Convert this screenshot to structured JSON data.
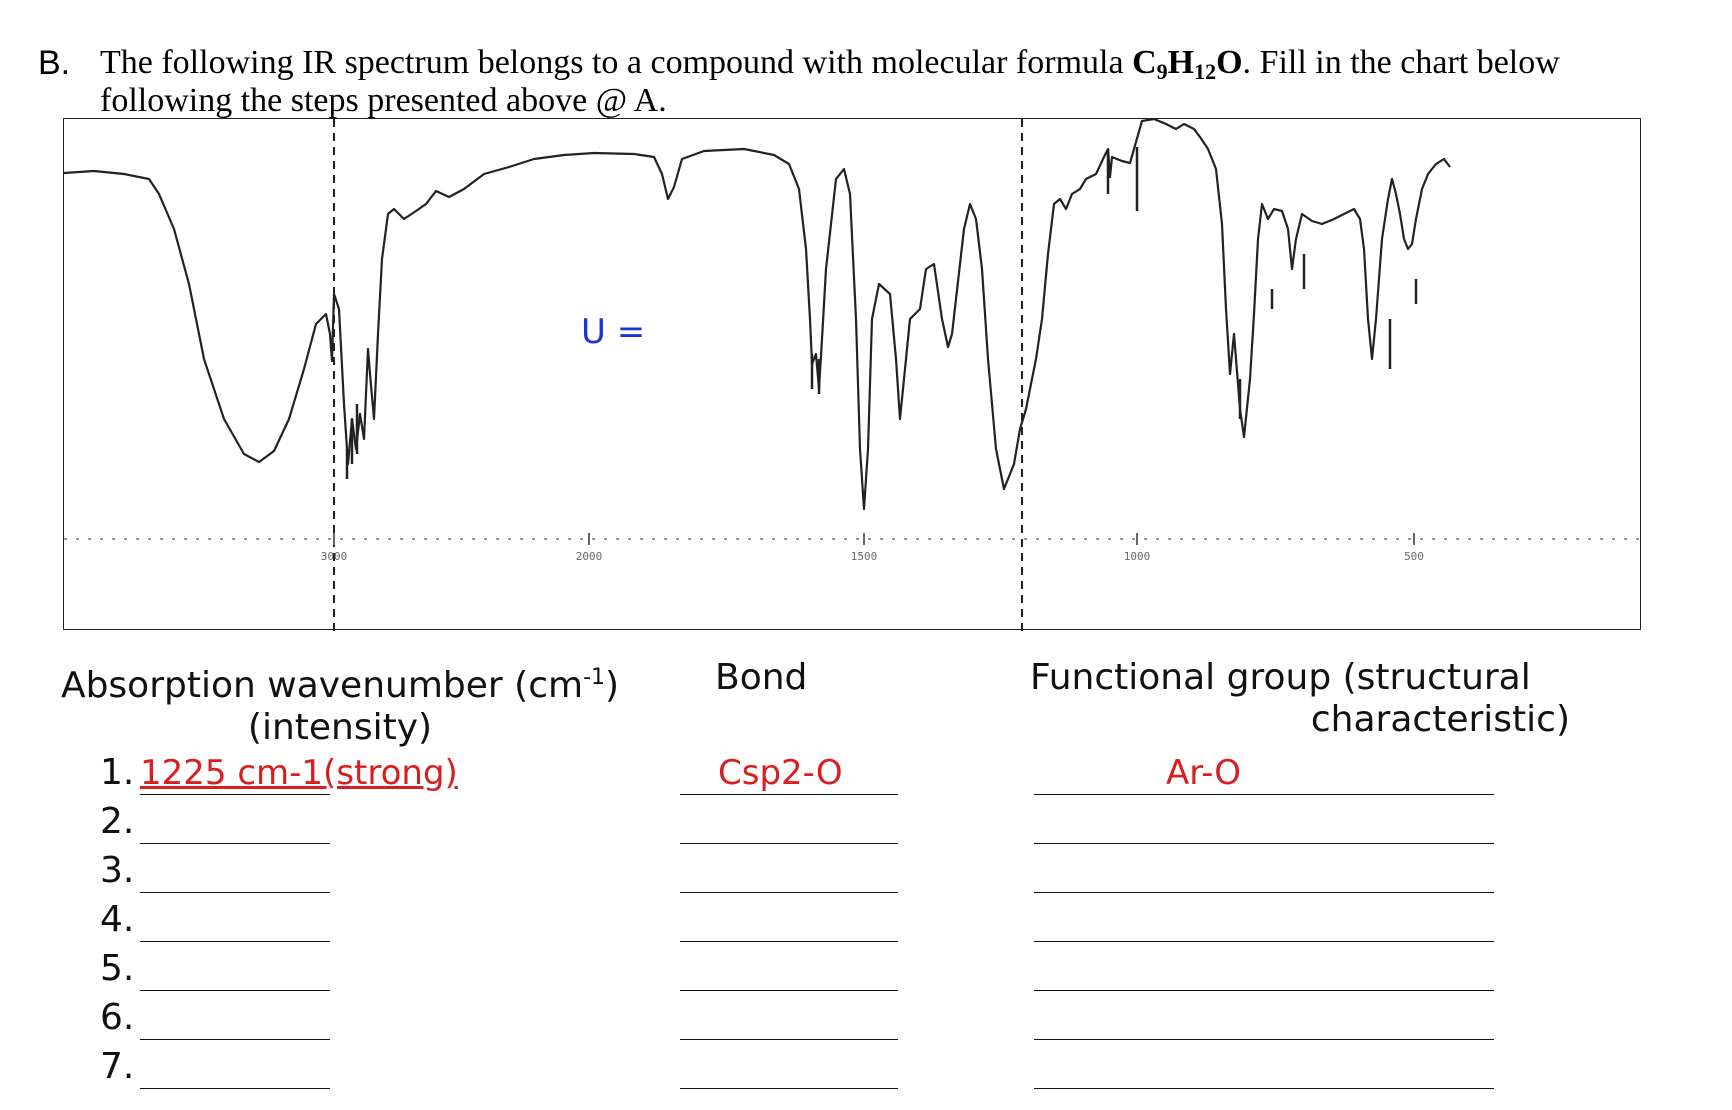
{
  "question": {
    "letter": "B.",
    "text_before": "The following IR spectrum belongs to a compound with molecular formula ",
    "formula": "C9H12O",
    "text_after": ". Fill in the chart below following the steps presented above @ A."
  },
  "spectrum": {
    "u_label": "U =",
    "x_ticks": [
      "3000",
      "2000",
      "1500",
      "1000",
      "500"
    ],
    "marker_lines": [
      "3000",
      "1225"
    ]
  },
  "table": {
    "headers": {
      "absorption": "Absorption wavenumber (cm-1) (intensity)",
      "absorption_line1": "Absorption wavenumber (cm",
      "absorption_sup": "-1",
      "absorption_close": ")",
      "absorption_line2": "(intensity)",
      "bond": "Bond",
      "functional_group_line1": "Functional group (structural",
      "functional_group_line2": "characteristic)"
    },
    "rows": [
      {
        "number": "1.",
        "absorption": "1225 cm-1(strong)",
        "bond": "Csp2-O",
        "functional_group": "Ar-O"
      },
      {
        "number": "2.",
        "absorption": "",
        "bond": "",
        "functional_group": ""
      },
      {
        "number": "3.",
        "absorption": "",
        "bond": "",
        "functional_group": ""
      },
      {
        "number": "4.",
        "absorption": "",
        "bond": "",
        "functional_group": ""
      },
      {
        "number": "5.",
        "absorption": "",
        "bond": "",
        "functional_group": ""
      },
      {
        "number": "6.",
        "absorption": "",
        "bond": "",
        "functional_group": ""
      },
      {
        "number": "7.",
        "absorption": "",
        "bond": "",
        "functional_group": ""
      }
    ]
  },
  "colors": {
    "answer": "#d81e1e",
    "u_label": "#1a35d6"
  }
}
